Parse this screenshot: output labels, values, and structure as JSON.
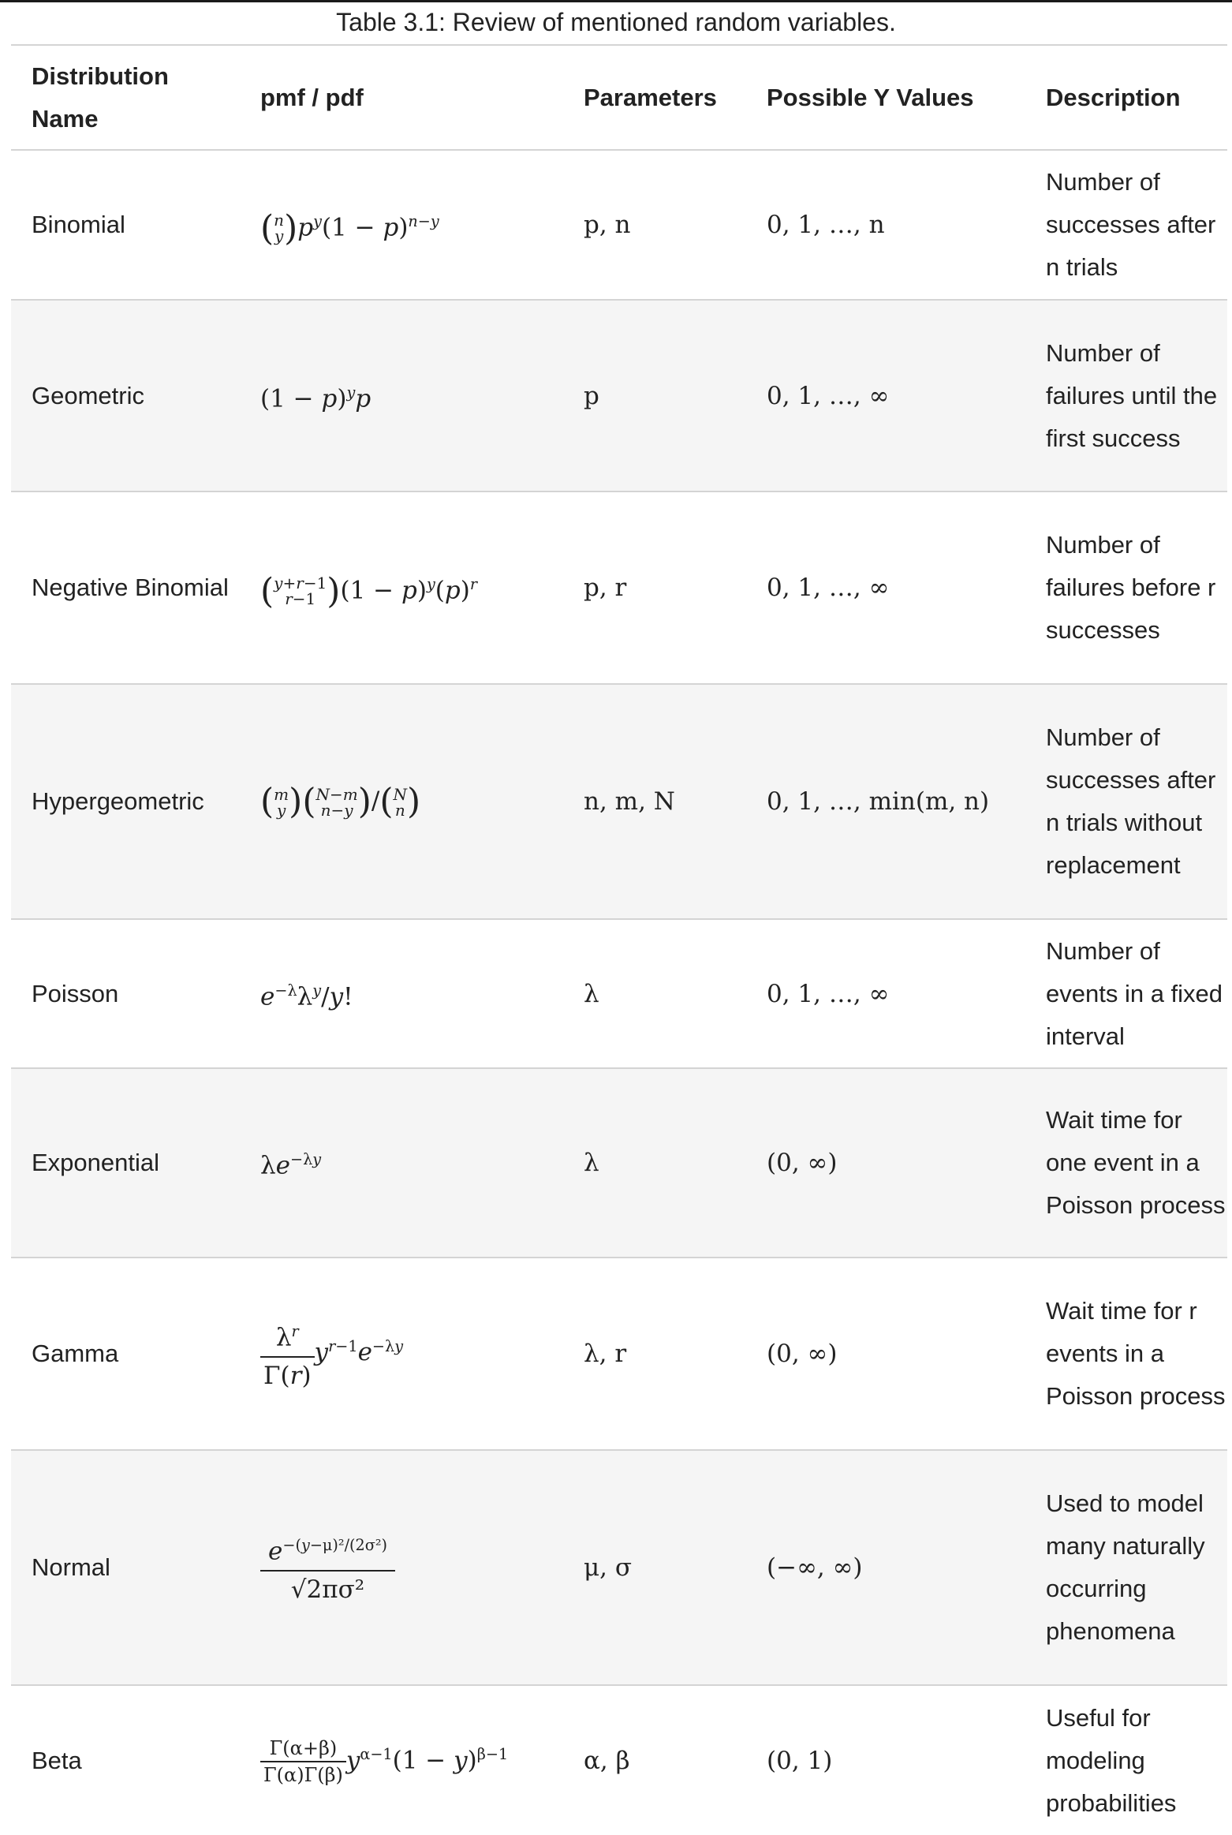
{
  "caption": "Table 3.1: Review of mentioned random variables.",
  "headers": {
    "name_line1": "Distribution",
    "name_line2": "Name",
    "pmf": "pmf / pdf",
    "params": "Parameters",
    "yvals": "Possible Y Values",
    "desc": "Description"
  },
  "rows": [
    {
      "name": "Binomial",
      "pmf": "C(n,y) p^y (1 − p)^(n−y)",
      "params": "p, n",
      "yvals": "0, 1, …, n",
      "desc": "Number of successes after n trials"
    },
    {
      "name": "Geometric",
      "pmf": "(1 − p)^y p",
      "params": "p",
      "yvals": "0, 1, …, ∞",
      "desc": "Number of failures until the first success"
    },
    {
      "name": "Negative Binomial",
      "pmf": "C(y+r−1, r−1) (1 − p)^y (p)^r",
      "params": "p, r",
      "yvals": "0, 1, …, ∞",
      "desc": "Number of failures before r successes"
    },
    {
      "name": "Hypergeometric",
      "pmf": "C(m,y) C(N−m, n−y) / C(N,n)",
      "params": "n, m, N",
      "yvals": "0, 1, …, min(m, n)",
      "desc": "Number of successes after n trials without replacement"
    },
    {
      "name": "Poisson",
      "pmf": "e^(−λ) λ^y / y!",
      "params": "λ",
      "yvals": "0, 1, …, ∞",
      "desc": "Number of events in a fixed interval"
    },
    {
      "name": "Exponential",
      "pmf": "λ e^(−λy)",
      "params": "λ",
      "yvals": "(0, ∞)",
      "desc": "Wait time for one event in a Poisson process"
    },
    {
      "name": "Gamma",
      "pmf": "λ^r / Γ(r) · y^(r−1) e^(−λy)",
      "params": "λ, r",
      "yvals": "(0, ∞)",
      "desc": "Wait time for r events in a Poisson process"
    },
    {
      "name": "Normal",
      "pmf": "e^(−(y−μ)²/(2σ²)) / √(2πσ²)",
      "params": "μ, σ",
      "yvals": "(−∞, ∞)",
      "desc": "Used to model many naturally occurring phenomena"
    },
    {
      "name": "Beta",
      "pmf": "Γ(α+β) / (Γ(α)Γ(β)) · y^(α−1) (1 − y)^(β−1)",
      "params": "α, β",
      "yvals": "(0, 1)",
      "desc": "Useful for modeling probabilities"
    }
  ]
}
